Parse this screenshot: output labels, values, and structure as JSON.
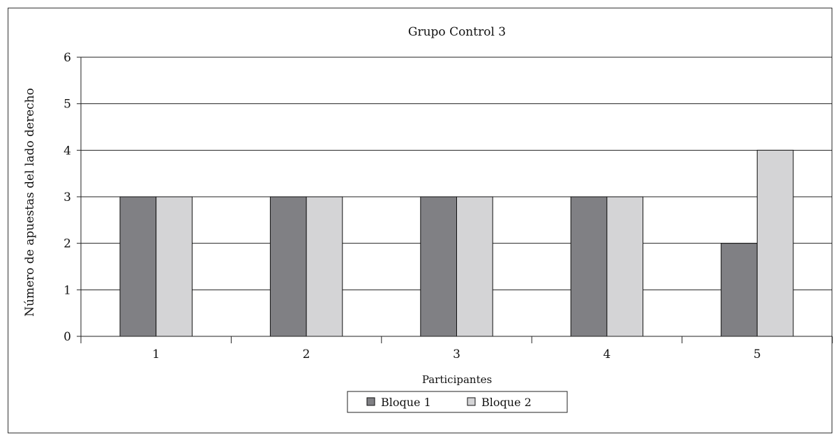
{
  "chart_data": {
    "type": "bar",
    "title": "Grupo Control 3",
    "xlabel": "Participantes",
    "ylabel": "Número de apuestas del lado derecho",
    "categories": [
      "1",
      "2",
      "3",
      "4",
      "5"
    ],
    "series": [
      {
        "name": "Bloque 1",
        "values": [
          3,
          3,
          3,
          3,
          2
        ],
        "color": "#808084"
      },
      {
        "name": "Bloque 2",
        "values": [
          3,
          3,
          3,
          3,
          4
        ],
        "color": "#d4d4d6"
      }
    ],
    "ylim": [
      0,
      6
    ],
    "yticks": [
      0,
      1,
      2,
      3,
      4,
      5,
      6
    ],
    "grid": true,
    "legend_position": "bottom-center"
  }
}
